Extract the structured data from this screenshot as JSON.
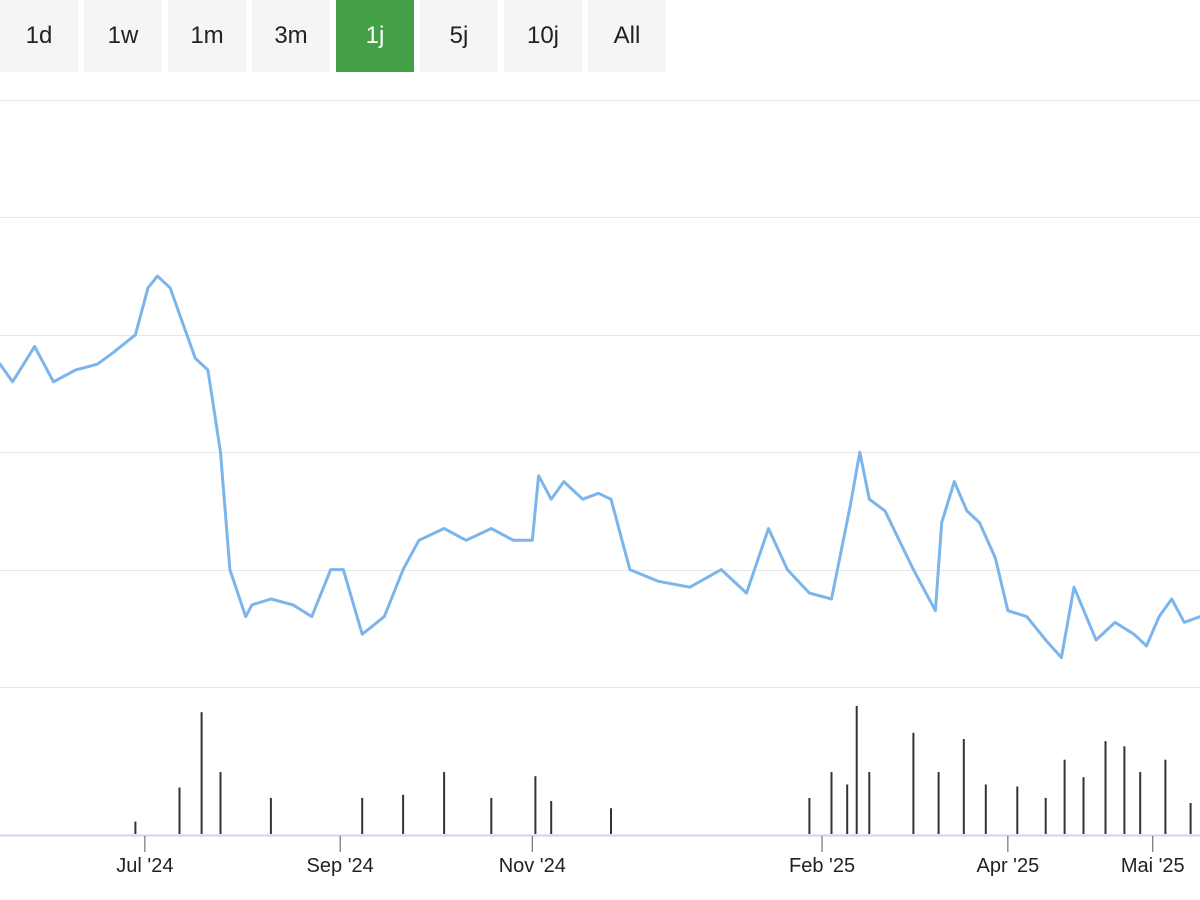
{
  "ranges": {
    "items": [
      "1d",
      "1w",
      "1m",
      "3m",
      "1j",
      "5j",
      "10j",
      "All"
    ],
    "active": "1j"
  },
  "colors": {
    "line": "#7cb5ec",
    "volume": "#333333",
    "grid": "#e6e6e6",
    "active_button": "#43a047"
  },
  "chart_data": {
    "type": "line",
    "title": "",
    "ylabel": "",
    "x_tick_labels": [
      "Jul '24",
      "Sep '24",
      "Nov '24",
      "Feb '25",
      "Apr '25",
      "Mai '25"
    ],
    "x_ticks": [
      "2024-06-30",
      "2024-08-31",
      "2024-10-31",
      "2025-01-31",
      "2025-03-31",
      "2025-05-16"
    ],
    "x_range": [
      "2024-05-15",
      "2025-05-31"
    ],
    "price_ylim": [
      0,
      100
    ],
    "price_gridlines": [
      20,
      40,
      60,
      80
    ],
    "series": [
      {
        "values": [
          [
            "2024-05-15",
            55
          ],
          [
            "2024-05-19",
            52
          ],
          [
            "2024-05-26",
            58
          ],
          [
            "2024-06-01",
            52
          ],
          [
            "2024-06-08",
            54
          ],
          [
            "2024-06-15",
            55
          ],
          [
            "2024-06-20",
            57
          ],
          [
            "2024-06-27",
            60
          ],
          [
            "2024-07-01",
            68
          ],
          [
            "2024-07-04",
            70
          ],
          [
            "2024-07-08",
            68
          ],
          [
            "2024-07-12",
            62
          ],
          [
            "2024-07-16",
            56
          ],
          [
            "2024-07-20",
            54
          ],
          [
            "2024-07-24",
            40
          ],
          [
            "2024-07-27",
            20
          ],
          [
            "2024-08-01",
            12
          ],
          [
            "2024-08-03",
            14
          ],
          [
            "2024-08-09",
            15
          ],
          [
            "2024-08-16",
            14
          ],
          [
            "2024-08-22",
            12
          ],
          [
            "2024-08-28",
            20
          ],
          [
            "2024-09-01",
            20
          ],
          [
            "2024-09-07",
            9
          ],
          [
            "2024-09-14",
            12
          ],
          [
            "2024-09-20",
            20
          ],
          [
            "2024-09-25",
            25
          ],
          [
            "2024-10-03",
            27
          ],
          [
            "2024-10-10",
            25
          ],
          [
            "2024-10-18",
            27
          ],
          [
            "2024-10-25",
            25
          ],
          [
            "2024-10-31",
            25
          ],
          [
            "2024-11-02",
            36
          ],
          [
            "2024-11-06",
            32
          ],
          [
            "2024-11-10",
            35
          ],
          [
            "2024-11-16",
            32
          ],
          [
            "2024-11-21",
            33
          ],
          [
            "2024-11-25",
            32
          ],
          [
            "2024-12-01",
            20
          ],
          [
            "2024-12-10",
            18
          ],
          [
            "2024-12-20",
            17
          ],
          [
            "2024-12-30",
            20
          ],
          [
            "2025-01-07",
            16
          ],
          [
            "2025-01-14",
            27
          ],
          [
            "2025-01-20",
            20
          ],
          [
            "2025-01-27",
            16
          ],
          [
            "2025-02-03",
            15
          ],
          [
            "2025-02-09",
            31
          ],
          [
            "2025-02-12",
            40
          ],
          [
            "2025-02-15",
            32
          ],
          [
            "2025-02-20",
            30
          ],
          [
            "2025-03-01",
            20
          ],
          [
            "2025-03-08",
            13
          ],
          [
            "2025-03-10",
            28
          ],
          [
            "2025-03-14",
            35
          ],
          [
            "2025-03-18",
            30
          ],
          [
            "2025-03-22",
            28
          ],
          [
            "2025-03-27",
            22
          ],
          [
            "2025-03-31",
            13
          ],
          [
            "2025-04-06",
            12
          ],
          [
            "2025-04-12",
            8
          ],
          [
            "2025-04-17",
            5
          ],
          [
            "2025-04-21",
            17
          ],
          [
            "2025-04-28",
            8
          ],
          [
            "2025-05-04",
            11
          ],
          [
            "2025-05-10",
            9
          ],
          [
            "2025-05-14",
            7
          ],
          [
            "2025-05-18",
            12
          ],
          [
            "2025-05-22",
            15
          ],
          [
            "2025-05-26",
            11
          ],
          [
            "2025-05-31",
            12
          ]
        ]
      }
    ],
    "volume": {
      "values": [
        [
          "2024-06-27",
          12
        ],
        [
          "2024-07-11",
          45
        ],
        [
          "2024-07-18",
          118
        ],
        [
          "2024-07-24",
          60
        ],
        [
          "2024-08-09",
          35
        ],
        [
          "2024-09-07",
          35
        ],
        [
          "2024-09-20",
          38
        ],
        [
          "2024-10-03",
          60
        ],
        [
          "2024-10-18",
          35
        ],
        [
          "2024-11-01",
          56
        ],
        [
          "2024-11-06",
          32
        ],
        [
          "2024-11-25",
          25
        ],
        [
          "2025-01-27",
          35
        ],
        [
          "2025-02-03",
          60
        ],
        [
          "2025-02-08",
          48
        ],
        [
          "2025-02-11",
          124
        ],
        [
          "2025-02-15",
          60
        ],
        [
          "2025-03-01",
          98
        ],
        [
          "2025-03-09",
          60
        ],
        [
          "2025-03-17",
          92
        ],
        [
          "2025-03-24",
          48
        ],
        [
          "2025-04-03",
          46
        ],
        [
          "2025-04-12",
          35
        ],
        [
          "2025-04-18",
          72
        ],
        [
          "2025-04-24",
          55
        ],
        [
          "2025-05-01",
          90
        ],
        [
          "2025-05-07",
          85
        ],
        [
          "2025-05-12",
          60
        ],
        [
          "2025-05-20",
          72
        ],
        [
          "2025-05-28",
          30
        ]
      ]
    }
  }
}
